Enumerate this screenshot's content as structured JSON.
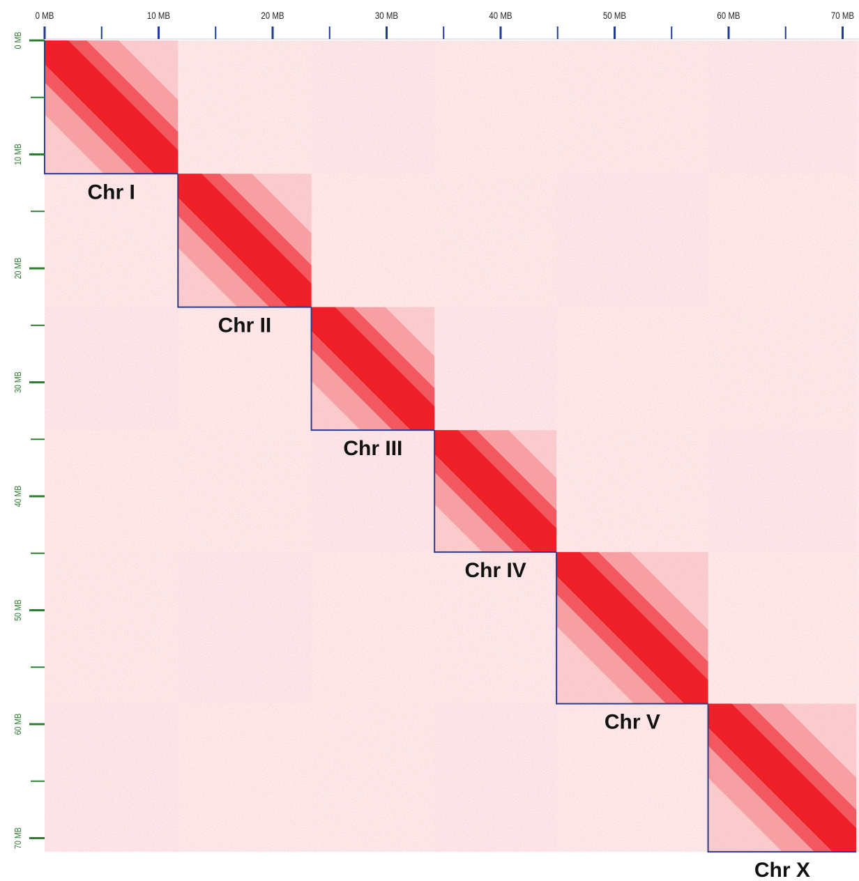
{
  "chart_data": {
    "type": "heatmap",
    "title": "",
    "x_axis": {
      "position": "top",
      "unit": "MB",
      "range": [
        0,
        71.2
      ],
      "ticks_major": [
        0,
        10,
        20,
        30,
        40,
        50,
        60,
        70
      ],
      "ticks_minor": [
        5,
        15,
        25,
        35,
        45,
        55,
        65
      ],
      "tick_labels": [
        "0 MB",
        "10 MB",
        "20 MB",
        "30 MB",
        "40 MB",
        "50 MB",
        "60 MB",
        "70 MB"
      ]
    },
    "y_axis": {
      "position": "left",
      "unit": "MB",
      "range": [
        0,
        71.2
      ],
      "ticks_major": [
        0,
        10,
        20,
        30,
        40,
        50,
        60,
        70
      ],
      "ticks_minor": [
        5,
        15,
        25,
        35,
        45,
        55,
        65
      ],
      "tick_labels": [
        "0 MB",
        "10 MB",
        "20 MB",
        "30 MB",
        "40 MB",
        "50 MB",
        "60 MB",
        "70 MB"
      ]
    },
    "chromosomes": [
      {
        "name": "Chr I",
        "start": 0.0,
        "end": 11.7
      },
      {
        "name": "Chr II",
        "start": 11.7,
        "end": 23.4
      },
      {
        "name": "Chr III",
        "start": 23.4,
        "end": 34.2
      },
      {
        "name": "Chr IV",
        "start": 34.2,
        "end": 44.9
      },
      {
        "name": "Chr V",
        "start": 44.9,
        "end": 58.2
      },
      {
        "name": "Chr X",
        "start": 58.2,
        "end": 71.2
      }
    ],
    "colors": {
      "contact_high": "#ee1c24",
      "contact_low": "#fbe2e4",
      "background": "#fdf1f2",
      "boundary": "#2b3a8c",
      "x_tick": "#1f3a93",
      "y_tick": "#2e7d32",
      "label": "#111111"
    },
    "grid": false,
    "legend": "none"
  }
}
